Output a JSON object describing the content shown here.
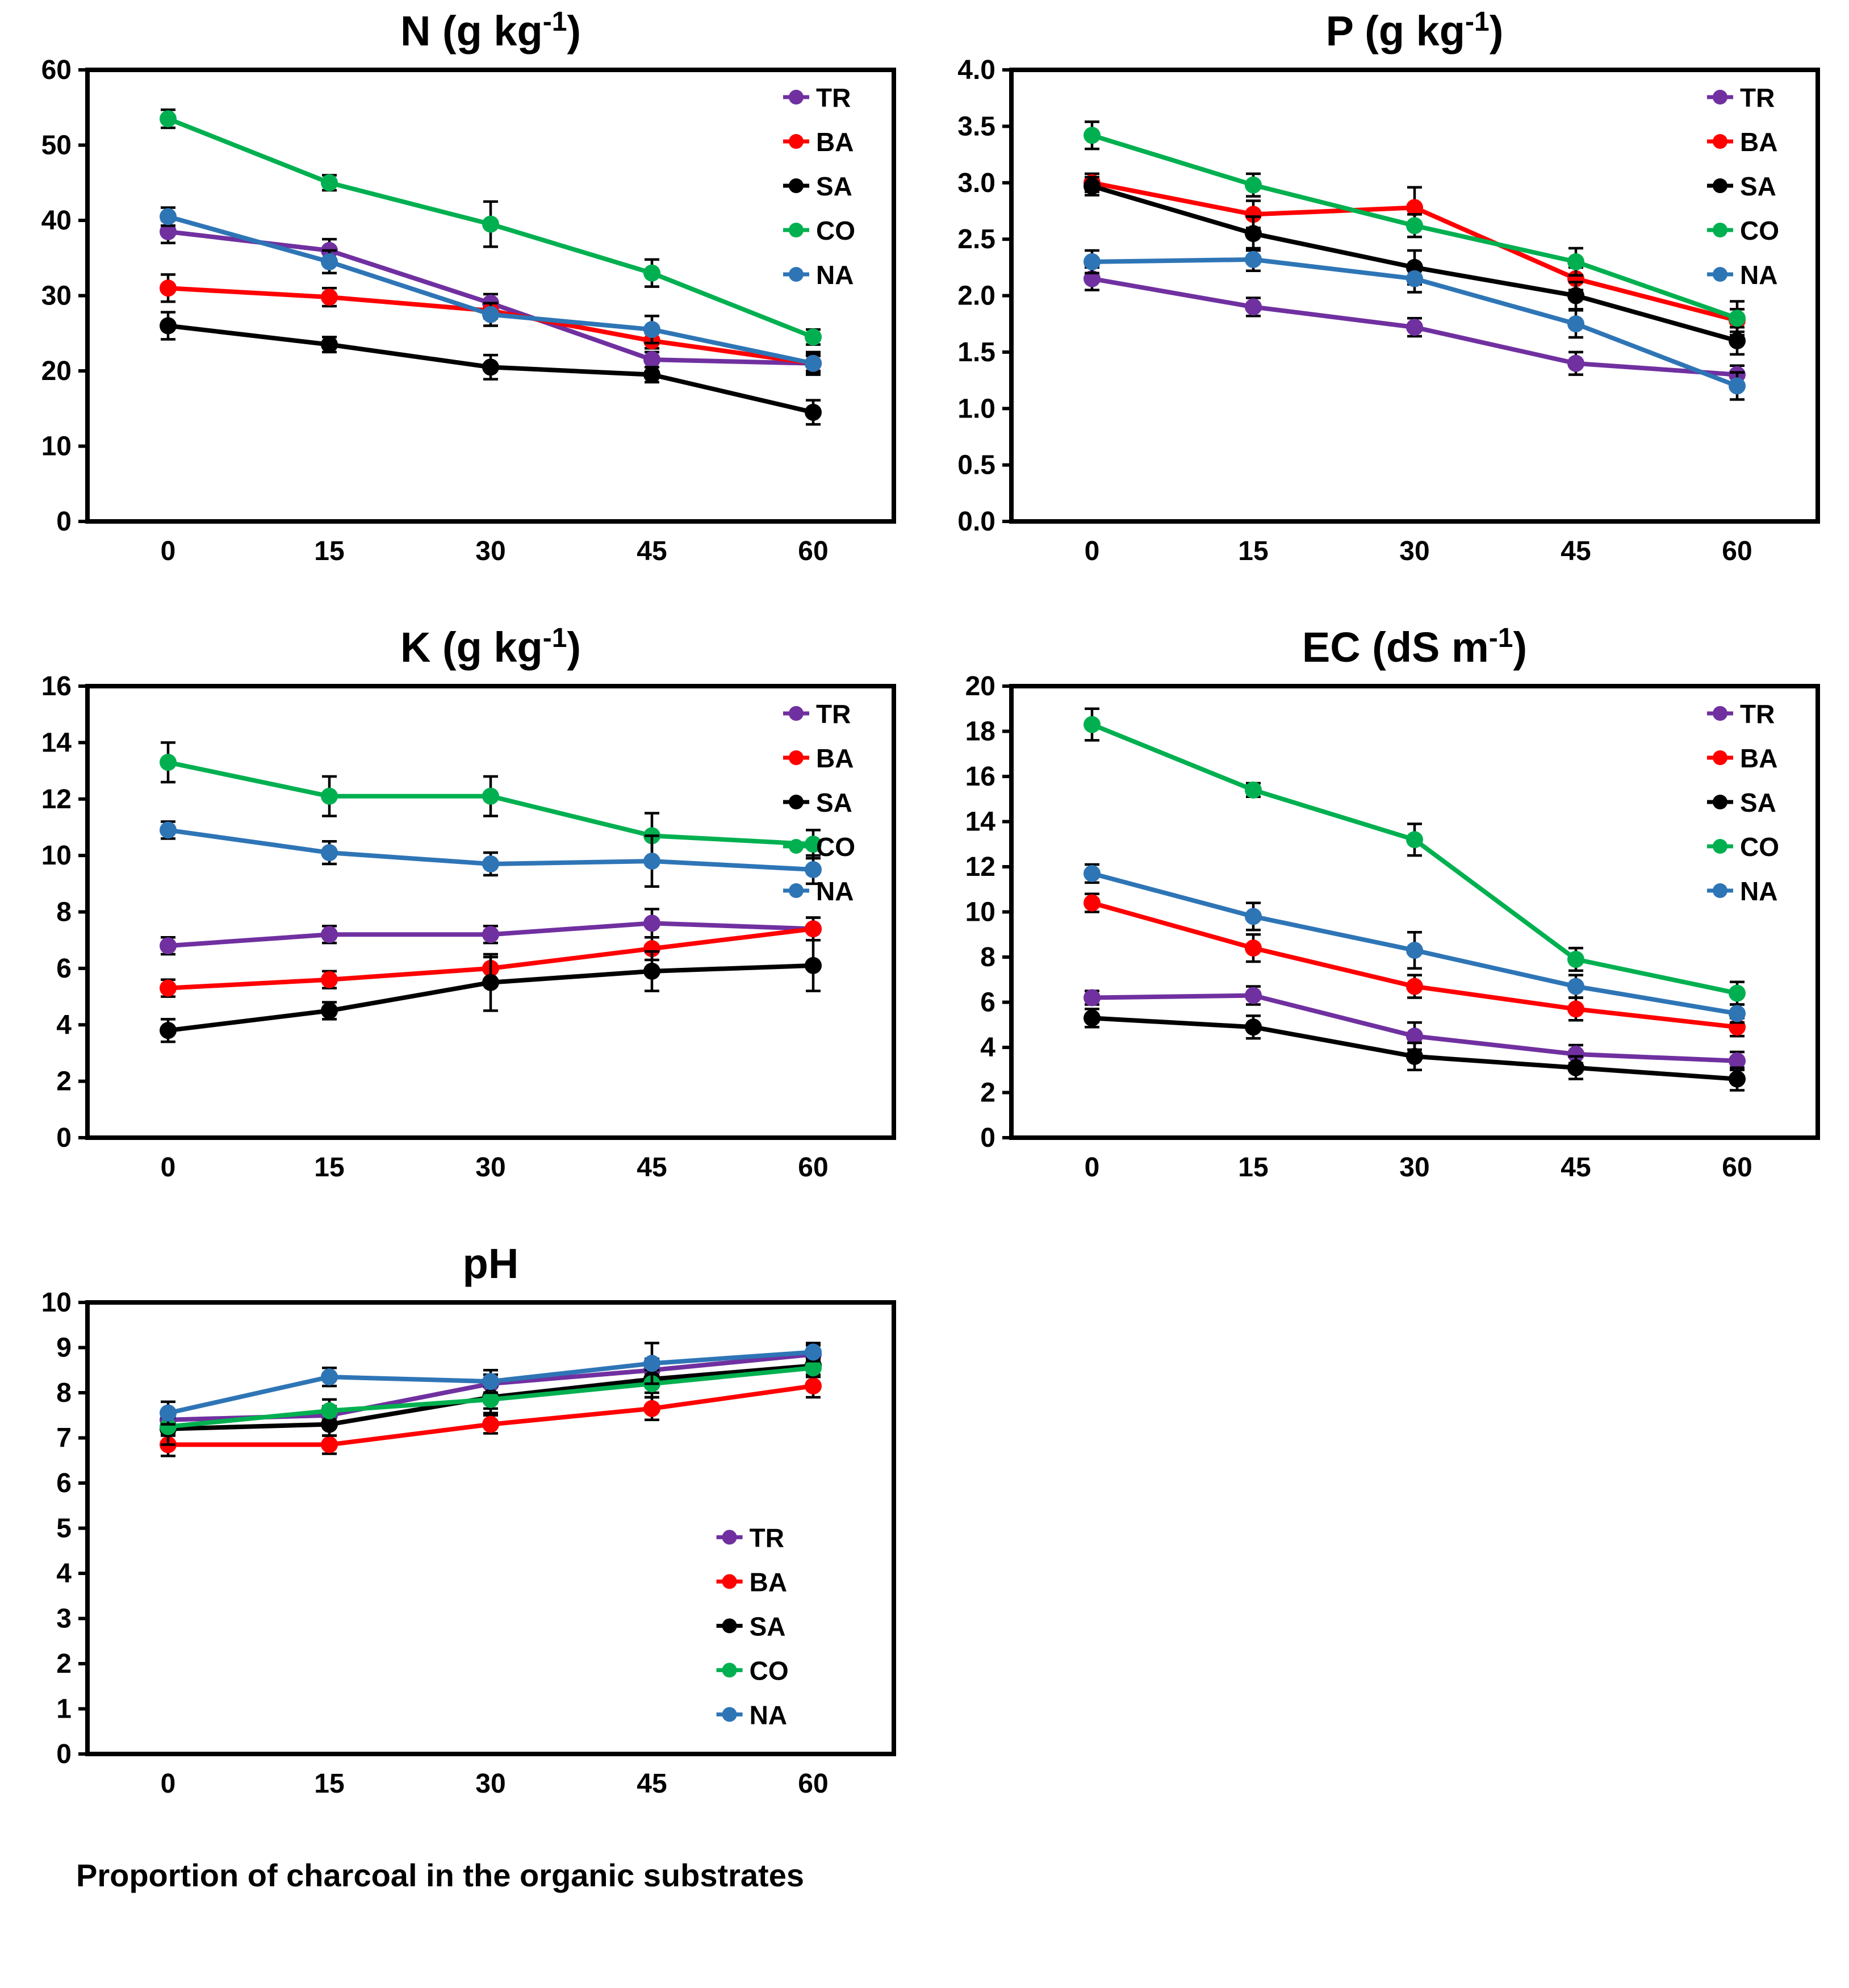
{
  "figure": {
    "xlabel": "Proportion of charcoal in the organic substrates"
  },
  "legend_labels": [
    "TR",
    "BA",
    "SA",
    "CO",
    "NA"
  ],
  "colors": {
    "TR": "#7030A0",
    "BA": "#FF0000",
    "SA": "#000000",
    "CO": "#00B050",
    "NA": "#2E75B6"
  },
  "chart_data": [
    {
      "id": "N",
      "type": "line",
      "title": {
        "main": "N (g kg",
        "sup": "-1",
        "end": ")"
      },
      "categories": [
        "0",
        "15",
        "30",
        "45",
        "60"
      ],
      "ylim": [
        0,
        60
      ],
      "ytick": 10,
      "ydec": 0,
      "legend_pos": "top-right",
      "series": [
        {
          "name": "TR",
          "color": "#7030A0",
          "values": [
            38.5,
            36.0,
            29.0,
            21.5,
            21.0
          ],
          "err": [
            1.5,
            1.5,
            1.2,
            1.0,
            1.0
          ]
        },
        {
          "name": "BA",
          "color": "#FF0000",
          "values": [
            31.0,
            29.8,
            28.0,
            24.0,
            21.0
          ],
          "err": [
            1.8,
            1.2,
            1.0,
            1.0,
            1.2
          ]
        },
        {
          "name": "SA",
          "color": "#000000",
          "values": [
            26.0,
            23.5,
            20.5,
            19.5,
            14.5
          ],
          "err": [
            1.8,
            1.0,
            1.6,
            1.0,
            1.6
          ]
        },
        {
          "name": "CO",
          "color": "#00B050",
          "values": [
            53.5,
            45.0,
            39.5,
            33.0,
            24.5
          ],
          "err": [
            1.2,
            1.0,
            3.0,
            1.8,
            1.0
          ]
        },
        {
          "name": "NA",
          "color": "#2E75B6",
          "values": [
            40.5,
            34.5,
            27.5,
            25.5,
            21.0
          ],
          "err": [
            1.2,
            1.5,
            1.5,
            1.8,
            1.5
          ]
        }
      ]
    },
    {
      "id": "P",
      "type": "line",
      "title": {
        "main": "P (g kg",
        "sup": "-1",
        "end": ")"
      },
      "categories": [
        "0",
        "15",
        "30",
        "45",
        "60"
      ],
      "ylim": [
        0,
        4
      ],
      "ytick": 0.5,
      "ydec": 1,
      "legend_pos": "top-right",
      "series": [
        {
          "name": "TR",
          "color": "#7030A0",
          "values": [
            2.15,
            1.9,
            1.72,
            1.4,
            1.3
          ],
          "err": [
            0.1,
            0.08,
            0.08,
            0.1,
            0.08
          ]
        },
        {
          "name": "BA",
          "color": "#FF0000",
          "values": [
            3.0,
            2.72,
            2.78,
            2.15,
            1.78
          ],
          "err": [
            0.08,
            0.12,
            0.18,
            0.1,
            0.1
          ]
        },
        {
          "name": "SA",
          "color": "#000000",
          "values": [
            2.97,
            2.55,
            2.25,
            2.0,
            1.6
          ],
          "err": [
            0.08,
            0.15,
            0.15,
            0.12,
            0.12
          ]
        },
        {
          "name": "CO",
          "color": "#00B050",
          "values": [
            3.42,
            2.98,
            2.62,
            2.3,
            1.8
          ],
          "err": [
            0.12,
            0.1,
            0.1,
            0.12,
            0.15
          ]
        },
        {
          "name": "NA",
          "color": "#2E75B6",
          "values": [
            2.3,
            2.32,
            2.15,
            1.75,
            1.2
          ],
          "err": [
            0.1,
            0.1,
            0.12,
            0.12,
            0.12
          ]
        }
      ]
    },
    {
      "id": "K",
      "type": "line",
      "title": {
        "main": "K (g kg",
        "sup": "-1",
        "end": ")"
      },
      "categories": [
        "0",
        "15",
        "30",
        "45",
        "60"
      ],
      "ylim": [
        0,
        16
      ],
      "ytick": 2,
      "ydec": 0,
      "legend_pos": "top-right",
      "series": [
        {
          "name": "TR",
          "color": "#7030A0",
          "values": [
            6.8,
            7.2,
            7.2,
            7.6,
            7.4
          ],
          "err": [
            0.3,
            0.3,
            0.3,
            0.5,
            0.4
          ]
        },
        {
          "name": "BA",
          "color": "#FF0000",
          "values": [
            5.3,
            5.6,
            6.0,
            6.7,
            7.4
          ],
          "err": [
            0.3,
            0.3,
            0.4,
            0.4,
            0.4
          ]
        },
        {
          "name": "SA",
          "color": "#000000",
          "values": [
            3.8,
            4.5,
            5.5,
            5.9,
            6.1
          ],
          "err": [
            0.4,
            0.3,
            1.0,
            0.7,
            0.9
          ]
        },
        {
          "name": "CO",
          "color": "#00B050",
          "values": [
            13.3,
            12.1,
            12.1,
            10.7,
            10.4
          ],
          "err": [
            0.7,
            0.7,
            0.7,
            0.8,
            0.5
          ]
        },
        {
          "name": "NA",
          "color": "#2E75B6",
          "values": [
            10.9,
            10.1,
            9.7,
            9.8,
            9.5
          ],
          "err": [
            0.3,
            0.4,
            0.4,
            0.9,
            0.5
          ]
        }
      ]
    },
    {
      "id": "EC",
      "type": "line",
      "title": {
        "main": "EC (dS m",
        "sup": "-1",
        "end": ")"
      },
      "categories": [
        "0",
        "15",
        "30",
        "45",
        "60"
      ],
      "ylim": [
        0,
        20
      ],
      "ytick": 2,
      "ydec": 0,
      "legend_pos": "top-right",
      "series": [
        {
          "name": "TR",
          "color": "#7030A0",
          "values": [
            6.2,
            6.3,
            4.5,
            3.7,
            3.4
          ],
          "err": [
            0.3,
            0.4,
            0.6,
            0.4,
            0.4
          ]
        },
        {
          "name": "BA",
          "color": "#FF0000",
          "values": [
            10.4,
            8.4,
            6.7,
            5.7,
            4.9
          ],
          "err": [
            0.4,
            0.6,
            0.5,
            0.5,
            0.4
          ]
        },
        {
          "name": "SA",
          "color": "#000000",
          "values": [
            5.3,
            4.9,
            3.6,
            3.1,
            2.6
          ],
          "err": [
            0.4,
            0.5,
            0.6,
            0.5,
            0.5
          ]
        },
        {
          "name": "CO",
          "color": "#00B050",
          "values": [
            18.3,
            15.4,
            13.2,
            7.9,
            6.4
          ],
          "err": [
            0.7,
            0.3,
            0.7,
            0.5,
            0.5
          ]
        },
        {
          "name": "NA",
          "color": "#2E75B6",
          "values": [
            11.7,
            9.8,
            8.3,
            6.7,
            5.5
          ],
          "err": [
            0.4,
            0.6,
            0.8,
            0.5,
            0.4
          ]
        }
      ]
    },
    {
      "id": "pH",
      "type": "line",
      "title": {
        "main": "pH",
        "sup": "",
        "end": ""
      },
      "categories": [
        "0",
        "15",
        "30",
        "45",
        "60"
      ],
      "ylim": [
        0,
        10
      ],
      "ytick": 1,
      "ydec": 0,
      "legend_pos": "mid-right",
      "series": [
        {
          "name": "TR",
          "color": "#7030A0",
          "values": [
            7.4,
            7.5,
            8.2,
            8.5,
            8.85
          ],
          "err": [
            0.2,
            0.2,
            0.2,
            0.25,
            0.2
          ]
        },
        {
          "name": "BA",
          "color": "#FF0000",
          "values": [
            6.85,
            6.85,
            7.3,
            7.65,
            8.15
          ],
          "err": [
            0.25,
            0.2,
            0.2,
            0.25,
            0.25
          ]
        },
        {
          "name": "SA",
          "color": "#000000",
          "values": [
            7.2,
            7.3,
            7.9,
            8.3,
            8.6
          ],
          "err": [
            0.35,
            0.25,
            0.25,
            0.3,
            0.2
          ]
        },
        {
          "name": "CO",
          "color": "#00B050",
          "values": [
            7.25,
            7.6,
            7.85,
            8.2,
            8.55
          ],
          "err": [
            0.2,
            0.25,
            0.3,
            0.3,
            0.2
          ]
        },
        {
          "name": "NA",
          "color": "#2E75B6",
          "values": [
            7.55,
            8.35,
            8.25,
            8.65,
            8.9
          ],
          "err": [
            0.25,
            0.2,
            0.25,
            0.45,
            0.2
          ]
        }
      ]
    }
  ]
}
